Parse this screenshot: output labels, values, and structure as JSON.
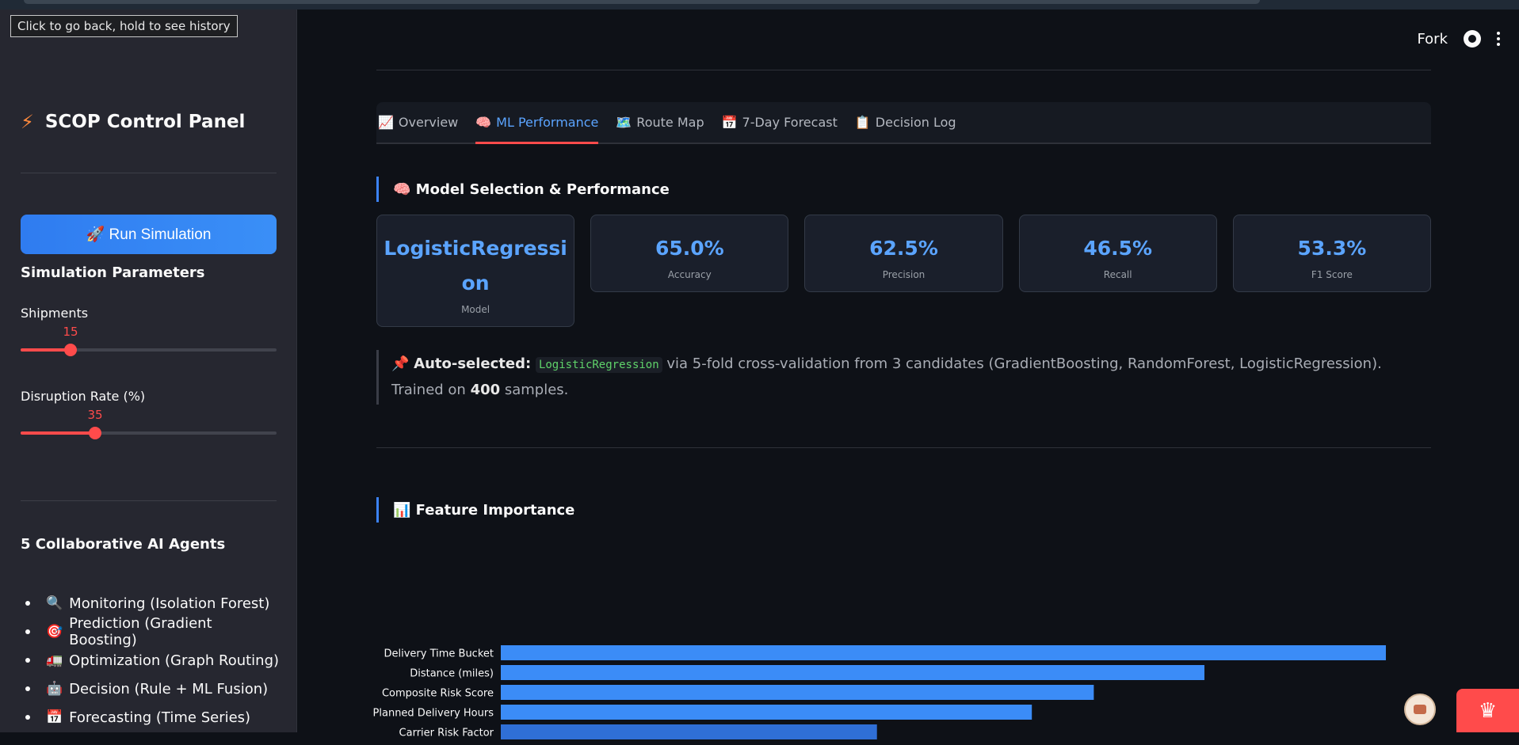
{
  "browser": {
    "back_tooltip": "Click to go back, hold to see history"
  },
  "sidebar": {
    "title": "SCOP Control Panel",
    "run_button": "🚀 Run Simulation",
    "params_heading": "Simulation Parameters",
    "shipments": {
      "label": "Shipments",
      "value": 15,
      "fraction": 0.195
    },
    "disruption": {
      "label": "Disruption Rate (%)",
      "value": 35,
      "fraction": 0.29
    },
    "agents_heading": "5 Collaborative AI Agents",
    "agents": [
      {
        "emoji": "🔍",
        "label": "Monitoring (Isolation Forest)"
      },
      {
        "emoji": "🎯",
        "label": "Prediction (Gradient Boosting)"
      },
      {
        "emoji": "🚛",
        "label": "Optimization (Graph Routing)"
      },
      {
        "emoji": "🤖",
        "label": "Decision (Rule + ML Fusion)"
      },
      {
        "emoji": "📅",
        "label": "Forecasting (Time Series)"
      }
    ]
  },
  "header": {
    "fork_label": "Fork"
  },
  "tabs": [
    {
      "emoji": "📈",
      "label": "Overview"
    },
    {
      "emoji": "🧠",
      "label": "ML Performance"
    },
    {
      "emoji": "🗺️",
      "label": "Route Map"
    },
    {
      "emoji": "📅",
      "label": "7-Day Forecast"
    },
    {
      "emoji": "📋",
      "label": "Decision Log"
    }
  ],
  "model_section": {
    "title": "🧠 Model Selection & Performance",
    "cards": [
      {
        "value": "LogisticRegression",
        "label": "Model"
      },
      {
        "value": "65.0%",
        "label": "Accuracy"
      },
      {
        "value": "62.5%",
        "label": "Precision"
      },
      {
        "value": "46.5%",
        "label": "Recall"
      },
      {
        "value": "53.3%",
        "label": "F1 Score"
      }
    ],
    "note": {
      "prefix": "📌 ",
      "bold": "Auto-selected:",
      "code": "LogisticRegression",
      "text": " via 5-fold cross-validation from 3 candidates (GradientBoosting, RandomForest, LogisticRegression). Trained on ",
      "count": "400",
      "suffix": " samples."
    }
  },
  "feature_section": {
    "title": "📊 Feature Importance"
  },
  "chart_data": {
    "type": "bar",
    "orientation": "horizontal",
    "categories": [
      "Delivery Time Bucket",
      "Distance (miles)",
      "Composite Risk Score",
      "Planned Delivery Hours",
      "Carrier Risk Factor"
    ],
    "values": [
      1.0,
      0.795,
      0.67,
      0.6,
      0.425
    ],
    "colors": [
      "#3b8cf7",
      "#3b8cf7",
      "#3b8cf7",
      "#3b8cf7",
      "#2f6fd6"
    ]
  }
}
